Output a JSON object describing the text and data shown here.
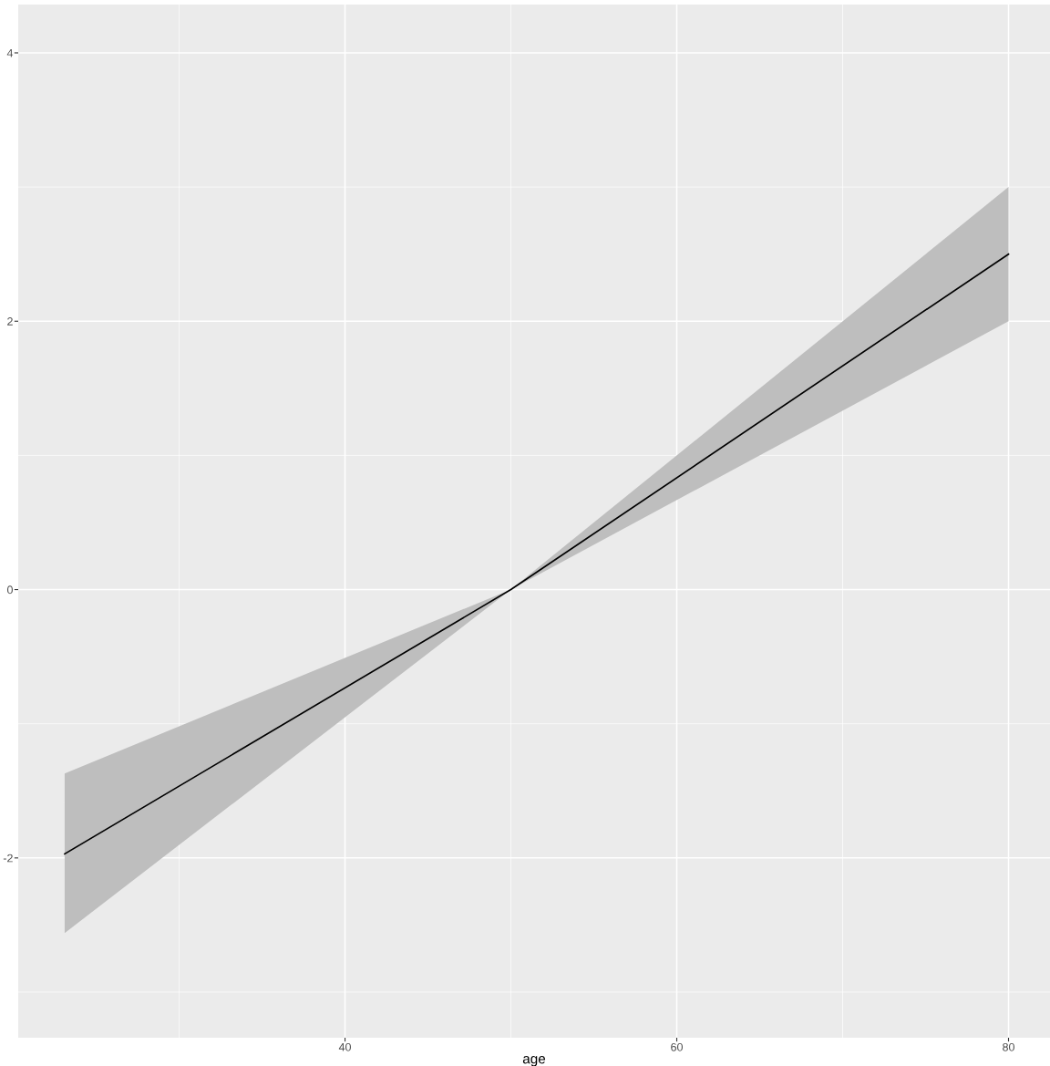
{
  "chart_data": {
    "type": "line",
    "xlabel": "age",
    "x": [
      23.1,
      50,
      80
    ],
    "series": [
      {
        "color": "#000000",
        "values": [
          -1.97,
          0,
          2.5
        ],
        "lower": [
          -2.56,
          0,
          2.0
        ],
        "upper": [
          -1.37,
          0,
          3.0
        ]
      }
    ],
    "xlim": [
      20.3,
      82.5
    ],
    "ylim": [
      -3.34,
      4.36
    ],
    "xticks": [
      {
        "value": 30,
        "label": null
      },
      40,
      {
        "value": 50,
        "label": null
      },
      60,
      {
        "value": 70,
        "label": null
      },
      80
    ],
    "yticks": [
      {
        "value": -3,
        "label": null
      },
      -2,
      {
        "value": -1,
        "label": null
      },
      0,
      {
        "value": 1,
        "label": null
      },
      2,
      {
        "value": 3,
        "label": null
      },
      4
    ],
    "grid": true,
    "marker": "none",
    "line_style": "solid"
  }
}
